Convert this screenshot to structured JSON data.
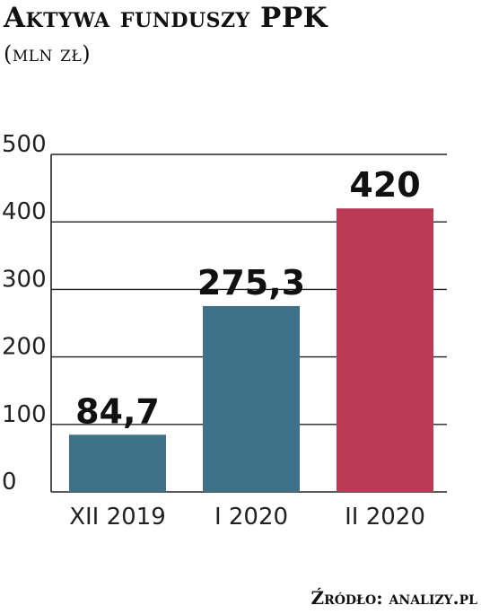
{
  "chart_data": {
    "type": "bar",
    "title": "Aktywa funduszy PPK",
    "subtitle": "(mln zł)",
    "categories": [
      "XII 2019",
      "I 2020",
      "II 2020"
    ],
    "values": [
      84.7,
      275.3,
      420
    ],
    "value_labels": [
      "84,7",
      "275,3",
      "420"
    ],
    "bar_colors": [
      "#3f7189",
      "#3f7189",
      "#bb3a55"
    ],
    "ylim": [
      0,
      500
    ],
    "yticks": [
      0,
      100,
      200,
      300,
      400,
      500
    ],
    "grid": true,
    "legend": "none",
    "source": "Źródło: analizy.pl"
  }
}
